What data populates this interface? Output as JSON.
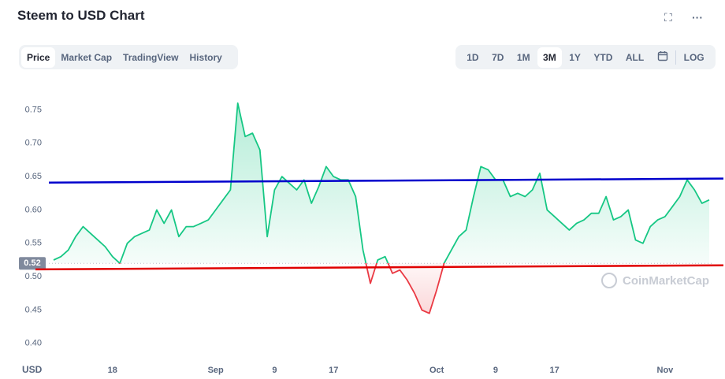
{
  "chart_data": {
    "type": "line",
    "title": "Steem to USD Chart",
    "tabs": [
      "Price",
      "Market Cap",
      "TradingView",
      "History"
    ],
    "ranges": [
      "1D",
      "7D",
      "1M",
      "3M",
      "1Y",
      "YTD",
      "ALL"
    ],
    "log_button": "LOG",
    "currency": "USD",
    "watermark": "CoinMarketCap",
    "categories": [
      null,
      null,
      null,
      null,
      null,
      null,
      null,
      null,
      "18",
      null,
      null,
      null,
      null,
      null,
      null,
      null,
      null,
      null,
      null,
      null,
      null,
      null,
      "Sep",
      null,
      null,
      null,
      null,
      null,
      null,
      null,
      "9",
      null,
      null,
      null,
      null,
      null,
      null,
      null,
      "17",
      null,
      null,
      null,
      null,
      null,
      null,
      null,
      null,
      null,
      null,
      null,
      null,
      null,
      "Oct",
      null,
      null,
      null,
      null,
      null,
      null,
      null,
      "9",
      null,
      null,
      null,
      null,
      null,
      null,
      null,
      "17",
      null,
      null,
      null,
      null,
      null,
      null,
      null,
      null,
      null,
      null,
      null,
      null,
      null,
      null,
      "Nov",
      null,
      null,
      null,
      null,
      null,
      null
    ],
    "values": [
      0.525,
      0.53,
      0.54,
      0.56,
      0.575,
      0.565,
      0.555,
      0.545,
      0.53,
      0.52,
      0.55,
      0.56,
      0.565,
      0.57,
      0.6,
      0.58,
      0.6,
      0.56,
      0.575,
      0.575,
      0.58,
      0.585,
      0.6,
      0.615,
      0.63,
      0.76,
      0.71,
      0.715,
      0.69,
      0.56,
      0.63,
      0.65,
      0.64,
      0.63,
      0.645,
      0.61,
      0.635,
      0.665,
      0.65,
      0.645,
      0.645,
      0.62,
      0.54,
      0.49,
      0.525,
      0.53,
      0.505,
      0.51,
      0.495,
      0.475,
      0.45,
      0.445,
      0.48,
      0.52,
      0.54,
      0.56,
      0.57,
      0.62,
      0.665,
      0.66,
      0.645,
      0.645,
      0.62,
      0.625,
      0.62,
      0.63,
      0.655,
      0.6,
      0.59,
      0.58,
      0.57,
      0.58,
      0.585,
      0.595,
      0.595,
      0.62,
      0.585,
      0.59,
      0.6,
      0.555,
      0.55,
      0.575,
      0.585,
      0.59,
      0.605,
      0.62,
      0.645,
      0.63,
      0.61,
      0.615
    ],
    "up_color": "#16c784",
    "down_color": "#ea3943",
    "baseline": 0.52,
    "trend_lines": [
      {
        "color": "#0000cc",
        "values": [
          0.641,
          0.647
        ]
      },
      {
        "color": "#e00000",
        "values": [
          0.511,
          0.517
        ]
      }
    ],
    "ylim": [
      0.375,
      0.78
    ],
    "yticks": [
      {
        "value": 0.4,
        "label": "0.40"
      },
      0.45,
      {
        "value": 0.5,
        "label": "0.50"
      },
      0.55,
      {
        "value": 0.6,
        "label": "0.60"
      },
      0.65,
      {
        "value": 0.7,
        "label": "0.70"
      },
      0.75
    ]
  }
}
